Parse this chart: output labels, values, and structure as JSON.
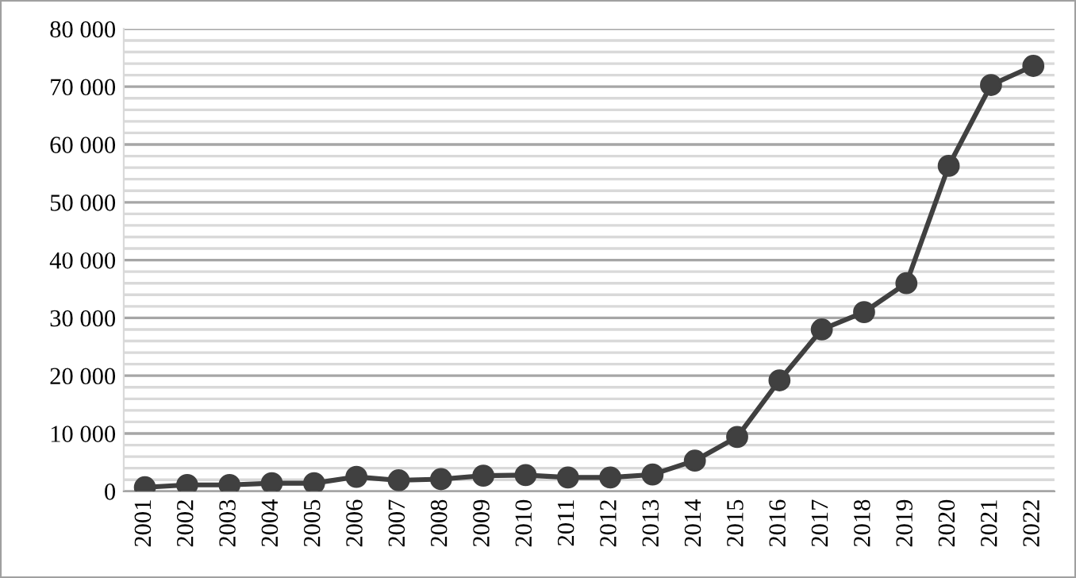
{
  "chart_data": {
    "type": "line",
    "categories": [
      "2001",
      "2002",
      "2003",
      "2004",
      "2005",
      "2006",
      "2007",
      "2008",
      "2009",
      "2010",
      "2011",
      "2012",
      "2013",
      "2014",
      "2015",
      "2016",
      "2017",
      "2018",
      "2019",
      "2020",
      "2021",
      "2022"
    ],
    "series": [
      {
        "color": "#404040",
        "values": [
          700,
          1100,
          1100,
          1400,
          1400,
          2500,
          1900,
          2100,
          2700,
          2800,
          2400,
          2400,
          2900,
          5300,
          9400,
          19200,
          28000,
          31000,
          36000,
          56300,
          70300,
          73600
        ]
      }
    ],
    "ylim": [
      0,
      80000
    ],
    "yticks": [
      {
        "value": 0,
        "label": "0"
      },
      {
        "value": 2000,
        "label": null
      },
      {
        "value": 4000,
        "label": null
      },
      {
        "value": 6000,
        "label": null
      },
      {
        "value": 8000,
        "label": null
      },
      {
        "value": 10000,
        "label": "10 000"
      },
      {
        "value": 12000,
        "label": null
      },
      {
        "value": 14000,
        "label": null
      },
      {
        "value": 16000,
        "label": null
      },
      {
        "value": 18000,
        "label": null
      },
      {
        "value": 20000,
        "label": "20 000"
      },
      {
        "value": 22000,
        "label": null
      },
      {
        "value": 24000,
        "label": null
      },
      {
        "value": 26000,
        "label": null
      },
      {
        "value": 28000,
        "label": null
      },
      {
        "value": 30000,
        "label": "30 000"
      },
      {
        "value": 32000,
        "label": null
      },
      {
        "value": 34000,
        "label": null
      },
      {
        "value": 36000,
        "label": null
      },
      {
        "value": 38000,
        "label": null
      },
      {
        "value": 40000,
        "label": "40 000"
      },
      {
        "value": 42000,
        "label": null
      },
      {
        "value": 44000,
        "label": null
      },
      {
        "value": 46000,
        "label": null
      },
      {
        "value": 48000,
        "label": null
      },
      {
        "value": 50000,
        "label": "50 000"
      },
      {
        "value": 52000,
        "label": null
      },
      {
        "value": 54000,
        "label": null
      },
      {
        "value": 56000,
        "label": null
      },
      {
        "value": 58000,
        "label": null
      },
      {
        "value": 60000,
        "label": "60 000"
      },
      {
        "value": 62000,
        "label": null
      },
      {
        "value": 64000,
        "label": null
      },
      {
        "value": 66000,
        "label": null
      },
      {
        "value": 68000,
        "label": null
      },
      {
        "value": 70000,
        "label": "70 000"
      },
      {
        "value": 72000,
        "label": null
      },
      {
        "value": 74000,
        "label": null
      },
      {
        "value": 76000,
        "label": null
      },
      {
        "value": 78000,
        "label": null
      },
      {
        "value": 80000,
        "label": "80 000"
      }
    ],
    "grid": "y",
    "marker": "circle",
    "line_style": "solid"
  }
}
